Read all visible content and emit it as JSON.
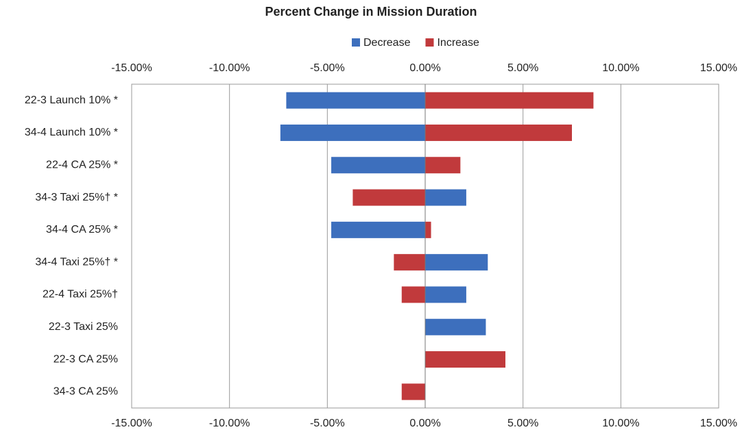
{
  "chart_data": {
    "type": "tornado",
    "title": "Percent Change in Mission Duration",
    "categories": [
      "22-3 Launch 10% *",
      "34-4 Launch 10% *",
      "22-4 CA 25% *",
      "34-3 Taxi 25%† *",
      "34-4 CA 25% *",
      "34-4 Taxi 25%† *",
      "22-4 Taxi 25%†",
      "22-3 Taxi 25%",
      "22-3 CA 25%",
      "34-3 CA 25%"
    ],
    "series": [
      {
        "name": "Decrease",
        "color": "#3d6fbd",
        "values": [
          -7.1,
          -7.4,
          -4.8,
          2.1,
          -4.8,
          3.2,
          2.1,
          3.1,
          null,
          null
        ]
      },
      {
        "name": "Increase",
        "color": "#c13a3c",
        "values": [
          8.6,
          7.5,
          1.8,
          -3.7,
          0.3,
          -1.6,
          -1.2,
          null,
          4.1,
          -1.2
        ]
      }
    ],
    "xlim": [
      -15,
      15
    ],
    "xticks": [
      {
        "value": -15,
        "label": "-15.00%"
      },
      {
        "value": -10,
        "label": "-10.00%"
      },
      {
        "value": -5,
        "label": "-5.00%"
      },
      {
        "value": 0,
        "label": "0.00%"
      },
      {
        "value": 5,
        "label": "5.00%"
      },
      {
        "value": 10,
        "label": "10.00%"
      },
      {
        "value": 15,
        "label": "15.00%"
      }
    ],
    "grid": true,
    "legend": "top"
  }
}
